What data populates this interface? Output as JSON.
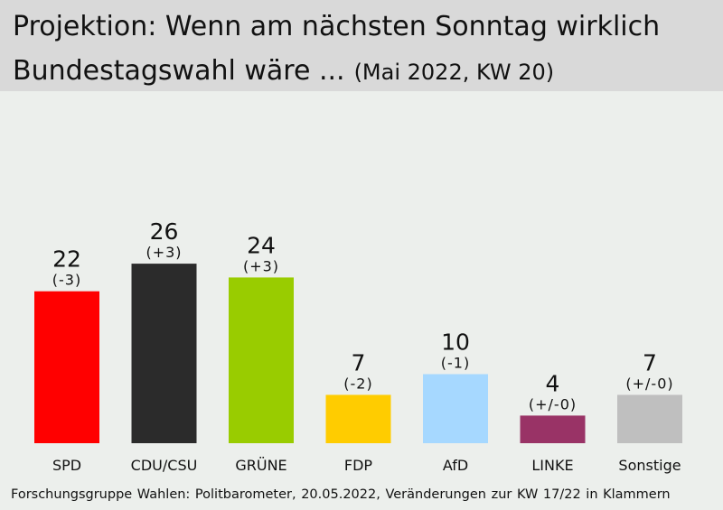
{
  "header": {
    "title_line1": "Projektion: Wenn am nächsten Sonntag wirklich",
    "title_line2": "Bundestagswahl wäre ...",
    "subtitle": "(Mai 2022, KW 20)"
  },
  "chart_data": {
    "type": "bar",
    "title": "Projektion: Wenn am nächsten Sonntag wirklich Bundestagswahl wäre ...",
    "subtitle": "(Mai 2022, KW 20)",
    "categories": [
      "SPD",
      "CDU/CSU",
      "GRÜNE",
      "FDP",
      "AfD",
      "LINKE",
      "Sonstige"
    ],
    "values": [
      22,
      26,
      24,
      7,
      10,
      4,
      7
    ],
    "changes": [
      "(-3)",
      "(+3)",
      "(+3)",
      "(-2)",
      "(-1)",
      "(+/-0)",
      "(+/-0)"
    ],
    "colors": [
      "#ff0000",
      "#2b2b2b",
      "#99cc00",
      "#ffcc00",
      "#a6d8ff",
      "#993366",
      "#bfbfbf"
    ],
    "ylim": [
      0,
      40
    ],
    "grid": false,
    "legend": "none"
  },
  "footer": {
    "source": "Forschungsgruppe Wahlen: Politbarometer, 20.05.2022, Veränderungen zur KW 17/22 in Klammern"
  }
}
